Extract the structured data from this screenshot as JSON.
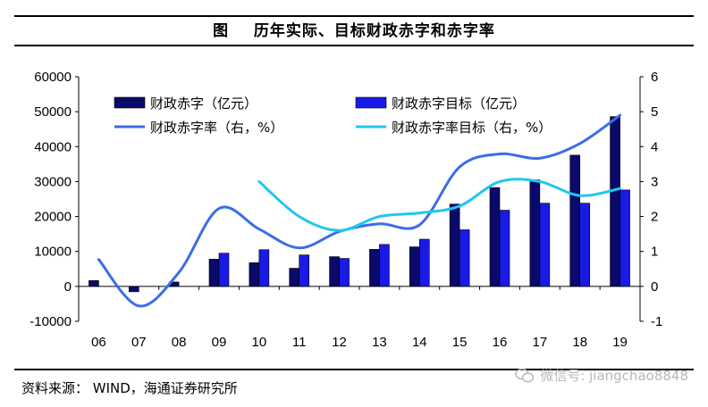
{
  "title": "图    历年实际、目标财政赤字和赤字率",
  "source": "资料来源： WIND，海通证券研究所",
  "watermark": {
    "text": "微信号: jiangchao8848",
    "icon": "wechat-icon"
  },
  "colors": {
    "deficit_actual": "#0a0a6b",
    "deficit_target": "#1a1ae6",
    "deficit_rate": "#3a6de8",
    "deficit_rate_target": "#1ec8f0"
  },
  "chart_data": {
    "type": "bar",
    "categories": [
      "06",
      "07",
      "08",
      "09",
      "10",
      "11",
      "12",
      "13",
      "14",
      "15",
      "16",
      "17",
      "18",
      "19"
    ],
    "y_left": {
      "min": -10000,
      "max": 60000,
      "ticks": [
        "60000",
        "50000",
        "40000",
        "30000",
        "20000",
        "10000",
        "0",
        "-10000"
      ]
    },
    "y_right": {
      "min": -1,
      "max": 6,
      "ticks": [
        "6",
        "5",
        "4",
        "3",
        "2",
        "1",
        "0",
        "-1"
      ]
    },
    "series": [
      {
        "name": "财政赤字（亿元）",
        "type": "bar",
        "axis": "left",
        "values": [
          1660,
          -1540,
          1262,
          7781,
          6773,
          5190,
          8502,
          10601,
          11313,
          23551,
          28289,
          30493,
          37554,
          48600
        ]
      },
      {
        "name": "财政赤字目标（亿元）",
        "type": "bar",
        "axis": "left",
        "values": [
          null,
          null,
          null,
          9500,
          10500,
          9000,
          8000,
          12000,
          13500,
          16200,
          21800,
          23800,
          23800,
          27600
        ]
      },
      {
        "name": "财政赤字率（右，%）",
        "type": "line",
        "axis": "right",
        "values": [
          0.77,
          -0.56,
          0.4,
          2.23,
          1.64,
          1.1,
          1.57,
          1.79,
          1.76,
          3.42,
          3.79,
          3.67,
          4.09,
          4.9
        ]
      },
      {
        "name": "财政赤字率目标（右，%）",
        "type": "line",
        "axis": "right",
        "values": [
          null,
          null,
          null,
          null,
          3.0,
          2.0,
          1.6,
          2.0,
          2.1,
          2.3,
          3.0,
          3.0,
          2.6,
          2.8
        ]
      }
    ],
    "legend": "top",
    "grid": false
  }
}
